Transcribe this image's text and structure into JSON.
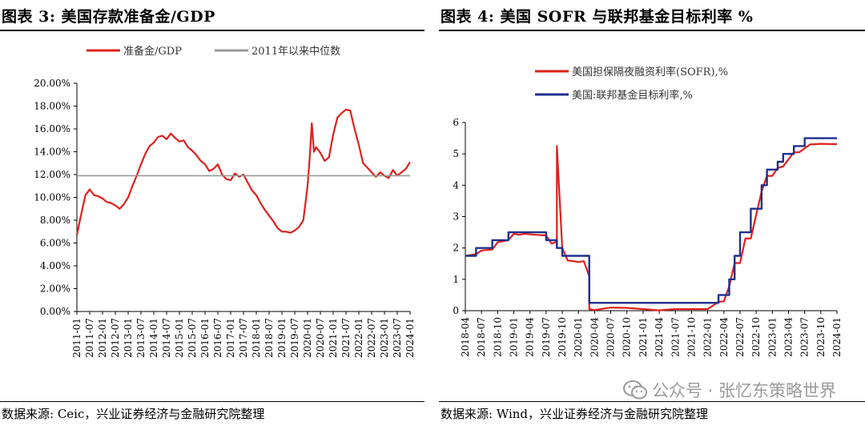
{
  "chart_data": [
    {
      "type": "line",
      "title": "图表 3:  美国存款准备金/GDP",
      "source": "数据来源:  Ceic，兴业证券经济与金融研究院整理",
      "ylim": [
        0,
        20
      ],
      "yticks": [
        "0.00%",
        "2.00%",
        "4.00%",
        "6.00%",
        "8.00%",
        "10.00%",
        "12.00%",
        "14.00%",
        "16.00%",
        "18.00%",
        "20.00%"
      ],
      "xlim": [
        "2011-01",
        "2024-01"
      ],
      "xticks": [
        "2011-01",
        "2011-07",
        "2012-01",
        "2012-07",
        "2013-01",
        "2013-07",
        "2014-01",
        "2014-07",
        "2015-01",
        "2015-07",
        "2016-01",
        "2016-07",
        "2017-01",
        "2017-07",
        "2018-01",
        "2018-07",
        "2019-01",
        "2019-07",
        "2020-01",
        "2020-07",
        "2021-01",
        "2021-07",
        "2022-01",
        "2022-07",
        "2023-01",
        "2023-07",
        "2024-01"
      ],
      "legend_position": "top",
      "colors": {
        "series": "#e0201b",
        "median": "#999999"
      },
      "series": [
        {
          "name": "准备金/GDP",
          "x": [
            "2011-01",
            "2011-03",
            "2011-05",
            "2011-07",
            "2011-09",
            "2011-11",
            "2012-01",
            "2012-03",
            "2012-05",
            "2012-07",
            "2012-09",
            "2012-11",
            "2013-01",
            "2013-03",
            "2013-05",
            "2013-07",
            "2013-09",
            "2013-11",
            "2014-01",
            "2014-03",
            "2014-05",
            "2014-07",
            "2014-09",
            "2014-11",
            "2015-01",
            "2015-03",
            "2015-05",
            "2015-07",
            "2015-09",
            "2015-11",
            "2016-01",
            "2016-03",
            "2016-05",
            "2016-07",
            "2016-09",
            "2016-11",
            "2017-01",
            "2017-03",
            "2017-05",
            "2017-07",
            "2017-09",
            "2017-11",
            "2018-01",
            "2018-03",
            "2018-05",
            "2018-07",
            "2018-09",
            "2018-11",
            "2019-01",
            "2019-03",
            "2019-05",
            "2019-07",
            "2019-09",
            "2019-11",
            "2020-01",
            "2020-02",
            "2020-03",
            "2020-04",
            "2020-05",
            "2020-07",
            "2020-09",
            "2020-11",
            "2021-01",
            "2021-03",
            "2021-05",
            "2021-07",
            "2021-09",
            "2021-11",
            "2022-01",
            "2022-03",
            "2022-05",
            "2022-07",
            "2022-09",
            "2022-11",
            "2023-01",
            "2023-03",
            "2023-05",
            "2023-07",
            "2023-09",
            "2023-11",
            "2024-01"
          ],
          "values": [
            6.7,
            8.5,
            10.2,
            10.7,
            10.2,
            10.1,
            9.9,
            9.6,
            9.5,
            9.3,
            9.0,
            9.4,
            10.0,
            11.0,
            11.9,
            12.9,
            13.8,
            14.5,
            14.8,
            15.3,
            15.4,
            15.1,
            15.6,
            15.2,
            14.9,
            15.0,
            14.4,
            14.1,
            13.7,
            13.2,
            12.9,
            12.3,
            12.5,
            12.9,
            12.0,
            11.6,
            11.5,
            12.1,
            11.8,
            12.0,
            11.3,
            10.6,
            10.2,
            9.5,
            8.9,
            8.4,
            7.9,
            7.3,
            7.0,
            7.0,
            6.9,
            7.1,
            7.4,
            8.0,
            11.0,
            13.5,
            16.5,
            14.0,
            14.4,
            13.9,
            13.2,
            13.5,
            15.5,
            17.0,
            17.4,
            17.7,
            17.6,
            16.0,
            14.6,
            13.0,
            12.6,
            12.2,
            11.8,
            12.2,
            11.9,
            11.7,
            12.4,
            11.9,
            12.2,
            12.5,
            13.1
          ]
        },
        {
          "name": "2011年以来中位数",
          "x": [
            "2011-01",
            "2024-01"
          ],
          "values": [
            11.9,
            11.9
          ]
        }
      ]
    },
    {
      "type": "line",
      "title": "图表 4:  美国 SOFR 与联邦基金目标利率 %",
      "source": "数据来源:  Wind，兴业证券经济与金融研究院整理",
      "ylim": [
        0,
        6
      ],
      "yticks": [
        "0",
        "1",
        "2",
        "3",
        "4",
        "5",
        "6"
      ],
      "xlim": [
        "2018-04",
        "2024-01"
      ],
      "xticks": [
        "2018-04",
        "2018-07",
        "2018-10",
        "2019-01",
        "2019-04",
        "2019-07",
        "2019-10",
        "2020-01",
        "2020-04",
        "2020-07",
        "2020-10",
        "2021-01",
        "2021-04",
        "2021-07",
        "2021-10",
        "2022-01",
        "2022-04",
        "2022-07",
        "2022-10",
        "2023-01",
        "2023-04",
        "2023-07",
        "2023-10",
        "2024-01"
      ],
      "legend_position": "top-left",
      "colors": {
        "sofr": "#e0201b",
        "fed": "#1f2f8c"
      },
      "series": [
        {
          "name": "美国担保隔夜融资利率(SOFR),%",
          "x": [
            "2018-04",
            "2018-06",
            "2018-07",
            "2018-09",
            "2018-10",
            "2018-12",
            "2019-01",
            "2019-02",
            "2019-03",
            "2019-05",
            "2019-07",
            "2019-08",
            "2019-09",
            "2019-09",
            "2019-10",
            "2019-11",
            "2019-12",
            "2020-01",
            "2020-02",
            "2020-03",
            "2020-03",
            "2020-04",
            "2020-07",
            "2020-10",
            "2021-01",
            "2021-04",
            "2021-07",
            "2021-10",
            "2022-01",
            "2022-03",
            "2022-04",
            "2022-05",
            "2022-06",
            "2022-07",
            "2022-08",
            "2022-09",
            "2022-10",
            "2022-11",
            "2022-12",
            "2023-01",
            "2023-02",
            "2023-03",
            "2023-05",
            "2023-06",
            "2023-08",
            "2023-10",
            "2024-01"
          ],
          "values": [
            1.75,
            1.8,
            1.92,
            1.95,
            2.18,
            2.25,
            2.45,
            2.42,
            2.45,
            2.42,
            2.4,
            2.14,
            2.2,
            5.25,
            2.0,
            1.6,
            1.58,
            1.55,
            1.58,
            1.1,
            0.05,
            0.02,
            0.1,
            0.09,
            0.05,
            0.01,
            0.05,
            0.05,
            0.05,
            0.28,
            0.3,
            0.78,
            1.52,
            1.52,
            2.3,
            2.3,
            3.05,
            3.8,
            4.3,
            4.3,
            4.55,
            4.6,
            5.05,
            5.05,
            5.3,
            5.32,
            5.31
          ]
        },
        {
          "name": "美国:联邦基金目标利率,%",
          "x": [
            "2018-04",
            "2018-06",
            "2018-06",
            "2018-09",
            "2018-09",
            "2018-12",
            "2018-12",
            "2019-07",
            "2019-07",
            "2019-09",
            "2019-09",
            "2019-10",
            "2019-10",
            "2020-03",
            "2020-03",
            "2022-03",
            "2022-03",
            "2022-05",
            "2022-05",
            "2022-06",
            "2022-06",
            "2022-07",
            "2022-07",
            "2022-09",
            "2022-09",
            "2022-11",
            "2022-11",
            "2022-12",
            "2022-12",
            "2023-02",
            "2023-02",
            "2023-03",
            "2023-03",
            "2023-05",
            "2023-05",
            "2023-07",
            "2023-07",
            "2024-01"
          ],
          "values": [
            1.75,
            1.75,
            2.0,
            2.0,
            2.25,
            2.25,
            2.5,
            2.5,
            2.25,
            2.25,
            2.0,
            2.0,
            1.75,
            1.75,
            0.25,
            0.25,
            0.5,
            0.5,
            1.0,
            1.0,
            1.75,
            1.75,
            2.5,
            2.5,
            3.25,
            3.25,
            4.0,
            4.0,
            4.5,
            4.5,
            4.75,
            4.75,
            5.0,
            5.0,
            5.25,
            5.25,
            5.5,
            5.5
          ]
        }
      ]
    }
  ],
  "watermark": "公众号 · 张忆东策略世界",
  "watermark_icon": "wechat-icon"
}
